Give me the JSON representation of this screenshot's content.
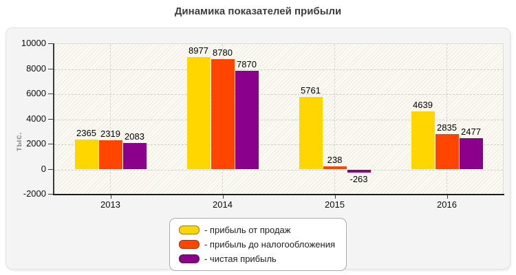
{
  "title": "Динамика показателей прибыли",
  "chart_data": {
    "type": "bar",
    "title": "Динамика показателей прибыли",
    "categories": [
      "2013",
      "2014",
      "2015",
      "2016"
    ],
    "series": [
      {
        "name": "прибыль от продаж",
        "color": "#ffd600",
        "values": [
          2365,
          8977,
          5761,
          4639
        ]
      },
      {
        "name": "прибыль до налогообложения",
        "color": "#ff4500",
        "values": [
          2319,
          8780,
          238,
          2835
        ]
      },
      {
        "name": "чистая прибыль",
        "color": "#8b008b",
        "values": [
          2083,
          7870,
          -263,
          2477
        ]
      }
    ],
    "xlabel": "",
    "ylabel": "тыс.",
    "ylim": [
      -2000,
      10000
    ],
    "y_ticks": [
      10000,
      8000,
      6000,
      4000,
      2000,
      0,
      -2000
    ],
    "grid": true,
    "legend_position": "bottom-center"
  },
  "legend": {
    "prefix": "- "
  },
  "colors": {
    "panel_bg": "#f4f4f4",
    "plot_bg": "#fbfaf2",
    "grid": "#cfcfc8",
    "axis": "#2a2a2a",
    "title_text": "#3e3e3e",
    "ylabel_text": "#8f8f8f"
  }
}
